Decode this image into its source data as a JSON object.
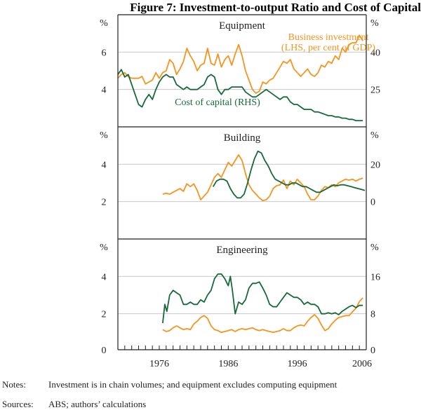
{
  "chart_data": {
    "type": "line",
    "title": "Figure 7: Investment-to-output Ratio and Cost of Capital",
    "colors": {
      "investment": "#f7941d",
      "cost_of_capital": "#17693a",
      "grid": "#c8c8c8",
      "frame": "#231f20"
    },
    "x_axis": {
      "range": [
        1970,
        2006
      ],
      "tick_labels": [
        "1976",
        "1986",
        "1996",
        "2006"
      ],
      "tick_values": [
        1976,
        1986,
        1996,
        2006
      ],
      "minor_ticks": "yearly"
    },
    "panels": [
      {
        "name": "Equipment",
        "left_unit": "%",
        "right_unit": "%",
        "left_range": [
          2,
          8
        ],
        "right_range": [
          10,
          55
        ],
        "left_ticks": [
          "4",
          "6"
        ],
        "left_tick_values": [
          4,
          6
        ],
        "right_ticks": [
          "25",
          "40"
        ],
        "right_tick_values": [
          25,
          40
        ],
        "grid": true,
        "annotations": [
          {
            "text": "Business investment",
            "series": "investment"
          },
          {
            "text": "(LHS, per cent of GDP)",
            "series": "investment"
          },
          {
            "text": "Cost of capital (RHS)",
            "series": "cost_of_capital"
          }
        ],
        "series": [
          {
            "name": "Business investment (LHS, per cent of GDP)",
            "key": "investment",
            "axis": "left",
            "x": [
              1970,
              1970.5,
              1971,
              1971.5,
              1972,
              1972.5,
              1973,
              1973.5,
              1974,
              1974.5,
              1975,
              1975.5,
              1976,
              1976.5,
              1977,
              1977.5,
              1978,
              1978.5,
              1979,
              1979.5,
              1980,
              1980.5,
              1981,
              1981.5,
              1982,
              1982.5,
              1983,
              1983.5,
              1984,
              1984.5,
              1985,
              1985.5,
              1986,
              1986.5,
              1987,
              1987.5,
              1988,
              1988.5,
              1989,
              1989.5,
              1990,
              1990.5,
              1991,
              1991.5,
              1992,
              1992.5,
              1993,
              1993.5,
              1994,
              1994.5,
              1995,
              1995.5,
              1996,
              1996.5,
              1997,
              1997.5,
              1998,
              1998.5,
              1999,
              1999.5,
              2000,
              2000.5,
              2001,
              2001.5,
              2002,
              2002.5,
              2003,
              2003.5,
              2004,
              2004.5,
              2005,
              2005.5
            ],
            "values": [
              4.6,
              4.8,
              4.9,
              4.7,
              4.6,
              4.6,
              4.6,
              4.7,
              4.3,
              4.4,
              4.5,
              4.9,
              4.6,
              4.9,
              5.0,
              5.6,
              5.4,
              4.8,
              5.1,
              5.5,
              6.2,
              5.8,
              5.5,
              5.0,
              5.3,
              5.4,
              6.2,
              5.4,
              5.3,
              5.9,
              5.2,
              5.6,
              5.8,
              5.3,
              5.9,
              6.4,
              5.8,
              5.0,
              4.5,
              4.0,
              3.8,
              3.9,
              4.4,
              4.3,
              4.5,
              4.6,
              4.9,
              5.2,
              5.5,
              5.4,
              5.6,
              5.1,
              4.9,
              4.7,
              4.9,
              5.1,
              4.8,
              4.7,
              4.9,
              5.3,
              5.2,
              5.5,
              5.4,
              5.8,
              5.6,
              6.2,
              6.0,
              6.4,
              6.5,
              6.5,
              6.9,
              6.6
            ]
          },
          {
            "name": "Cost of capital (RHS)",
            "key": "cost_of_capital",
            "axis": "right",
            "x": [
              1970,
              1970.5,
              1971,
              1971.5,
              1972,
              1972.5,
              1973,
              1973.5,
              1974,
              1974.5,
              1975,
              1975.5,
              1976,
              1976.5,
              1977,
              1977.5,
              1978,
              1978.5,
              1979,
              1979.5,
              1980,
              1980.5,
              1981,
              1981.5,
              1982,
              1982.5,
              1983,
              1983.5,
              1984,
              1984.5,
              1985,
              1985.5,
              1986,
              1986.5,
              1987,
              1987.5,
              1988,
              1988.5,
              1989,
              1989.5,
              1990,
              1990.5,
              1991,
              1991.5,
              1992,
              1992.5,
              1993,
              1993.5,
              1994,
              1994.5,
              1995,
              1995.5,
              1996,
              1996.5,
              1997,
              1997.5,
              1998,
              1998.5,
              1999,
              1999.5,
              2000,
              2000.5,
              2001,
              2001.5,
              2002,
              2002.5,
              2003,
              2003.5,
              2004,
              2004.5,
              2005,
              2005.5
            ],
            "values": [
              31,
              33,
              30,
              31,
              27,
              23,
              19,
              18,
              21,
              23,
              21,
              25,
              28,
              30,
              31,
              30,
              30,
              27,
              26,
              25,
              26,
              25,
              25,
              25,
              26,
              27,
              30,
              31,
              30,
              25,
              23,
              25,
              25,
              26,
              26,
              26,
              26,
              24,
              23,
              22,
              22,
              23,
              24,
              25,
              24,
              23,
              22,
              21,
              22,
              22,
              20,
              19,
              19,
              18,
              17,
              17,
              17,
              16,
              16,
              15.5,
              15,
              14.5,
              14.5,
              14,
              14,
              13.5,
              13.5,
              13,
              13,
              12.5,
              12.5,
              12.5
            ]
          }
        ]
      },
      {
        "name": "Building",
        "left_unit": "%",
        "right_unit": "%",
        "left_range": [
          0,
          6
        ],
        "right_range": [
          -20,
          40
        ],
        "left_ticks": [
          "2",
          "4"
        ],
        "left_tick_values": [
          2,
          4
        ],
        "right_ticks": [
          "0",
          "20"
        ],
        "right_tick_values": [
          0,
          20
        ],
        "grid": true,
        "series": [
          {
            "name": "Business investment (LHS, per cent of GDP)",
            "key": "investment",
            "axis": "left",
            "x": [
              1976.5,
              1977,
              1977.5,
              1978,
              1978.5,
              1979,
              1979.5,
              1980,
              1980.5,
              1981,
              1981.5,
              1982,
              1982.5,
              1983,
              1983.5,
              1984,
              1984.5,
              1985,
              1985.5,
              1986,
              1986.5,
              1987,
              1987.5,
              1988,
              1988.5,
              1989,
              1989.5,
              1990,
              1990.5,
              1991,
              1991.5,
              1992,
              1992.5,
              1993,
              1993.5,
              1994,
              1994.5,
              1995,
              1995.5,
              1996,
              1996.5,
              1997,
              1997.5,
              1998,
              1998.5,
              1999,
              1999.5,
              2000,
              2000.5,
              2001,
              2001.5,
              2002,
              2002.5,
              2003,
              2003.5,
              2004,
              2004.5,
              2005,
              2005.5
            ],
            "values": [
              2.4,
              2.45,
              2.4,
              2.5,
              2.6,
              2.7,
              2.55,
              2.95,
              2.8,
              2.95,
              2.6,
              2.1,
              2.3,
              2.5,
              2.9,
              3.3,
              3.5,
              3.3,
              3.7,
              4.1,
              3.9,
              4.2,
              4.5,
              4.2,
              3.5,
              2.9,
              2.6,
              2.4,
              2.2,
              2.05,
              2.1,
              2.3,
              2.7,
              2.85,
              2.9,
              3.15,
              2.7,
              3.1,
              2.9,
              3.2,
              3.0,
              2.8,
              2.4,
              2.1,
              2.1,
              2.3,
              2.6,
              2.8,
              2.75,
              2.9,
              2.8,
              3.0,
              3.1,
              3.2,
              3.15,
              3.2,
              3.1,
              3.2,
              3.25
            ]
          },
          {
            "name": "Cost of capital (RHS)",
            "key": "cost_of_capital",
            "axis": "right",
            "x": [
              1983.8,
              1984.3,
              1984.8,
              1985.3,
              1985.8,
              1986.3,
              1986.8,
              1987.3,
              1987.8,
              1988.3,
              1988.8,
              1989.3,
              1989.8,
              1990.3,
              1990.8,
              1991.3,
              1991.8,
              1992.3,
              1992.8,
              1993.3,
              1993.8,
              1994.3,
              1994.8,
              1995.3,
              1995.8,
              1996.3,
              1996.8,
              1997.3,
              1997.8,
              1998.3,
              1998.8,
              1999.3,
              1999.8,
              2000.3,
              2000.8,
              2001.3,
              2001.8,
              2002.3,
              2002.8,
              2003.3,
              2003.8,
              2004.3,
              2004.8,
              2005.3,
              2005.8
            ],
            "values": [
              8,
              11,
              12,
              12,
              11,
              7,
              4,
              2,
              2,
              4,
              10,
              17,
              23,
              27,
              26,
              22,
              19,
              15,
              12,
              11,
              10,
              9,
              9,
              10,
              10,
              9,
              8,
              8,
              7,
              6,
              5,
              5,
              6,
              7,
              8,
              9,
              8.5,
              9,
              9,
              8.5,
              8,
              7.5,
              7,
              6.5,
              6
            ]
          }
        ]
      },
      {
        "name": "Engineering",
        "left_unit": "%",
        "right_unit": "%",
        "left_range": [
          0,
          6
        ],
        "right_range": [
          0,
          24
        ],
        "left_ticks": [
          "0",
          "2",
          "4"
        ],
        "left_tick_values": [
          0,
          2,
          4
        ],
        "right_ticks": [
          "0",
          "8",
          "16"
        ],
        "right_tick_values": [
          0,
          8,
          16
        ],
        "grid": true,
        "series": [
          {
            "name": "Business investment (LHS, per cent of GDP)",
            "key": "investment",
            "axis": "left",
            "x": [
              1976.5,
              1977,
              1977.5,
              1978,
              1978.5,
              1979,
              1979.5,
              1980,
              1980.5,
              1981,
              1981.5,
              1982,
              1982.5,
              1983,
              1983.5,
              1984,
              1984.5,
              1985,
              1985.5,
              1986,
              1986.5,
              1987,
              1987.5,
              1988,
              1988.5,
              1989,
              1989.5,
              1990,
              1990.5,
              1991,
              1991.5,
              1992,
              1992.5,
              1993,
              1993.5,
              1994,
              1994.5,
              1995,
              1995.5,
              1996,
              1996.5,
              1997,
              1997.5,
              1998,
              1998.5,
              1999,
              1999.5,
              2000,
              2000.5,
              2001,
              2001.5,
              2002,
              2002.5,
              2003,
              2003.5,
              2004,
              2004.5,
              2005,
              2005.5
            ],
            "values": [
              1.15,
              1.05,
              1.1,
              1.25,
              1.35,
              1.25,
              1.15,
              1.2,
              1.15,
              1.45,
              1.6,
              1.8,
              1.9,
              1.75,
              1.35,
              1.15,
              1.1,
              1.0,
              1.05,
              1.1,
              1.15,
              1.05,
              1.15,
              1.2,
              1.15,
              1.2,
              1.25,
              1.15,
              1.1,
              1.15,
              1.1,
              1.05,
              1.0,
              1.05,
              1.1,
              1.2,
              1.1,
              1.1,
              1.25,
              1.35,
              1.4,
              1.35,
              1.6,
              1.8,
              1.95,
              1.75,
              1.4,
              1.1,
              1.2,
              1.45,
              1.65,
              1.8,
              1.85,
              1.9,
              1.9,
              2.1,
              2.3,
              2.65,
              2.85
            ]
          },
          {
            "name": "Cost of capital (RHS)",
            "key": "cost_of_capital",
            "axis": "right",
            "x": [
              1976.5,
              1976.8,
              1977.1,
              1977.5,
              1978,
              1978.5,
              1979,
              1979.5,
              1980,
              1980.5,
              1981,
              1981.5,
              1982,
              1982.5,
              1983,
              1983.5,
              1984,
              1984.5,
              1985,
              1985.5,
              1986,
              1986.3,
              1986.6,
              1987,
              1987.5,
              1988,
              1988.5,
              1989,
              1989.5,
              1990,
              1990.5,
              1991,
              1991.5,
              1992,
              1992.5,
              1993,
              1993.5,
              1994,
              1994.5,
              1995,
              1995.5,
              1996,
              1996.5,
              1997,
              1997.5,
              1998,
              1998.5,
              1999,
              1999.5,
              2000,
              2000.5,
              2001,
              2001.5,
              2002,
              2002.5,
              2003,
              2003.5,
              2004,
              2004.5,
              2005,
              2005.5
            ],
            "values": [
              6,
              10,
              8.5,
              12,
              13,
              12.5,
              12,
              10,
              10,
              10.5,
              10,
              10,
              11,
              10.5,
              12,
              13,
              15.5,
              16.5,
              16.5,
              15.5,
              14,
              16,
              13,
              8,
              10.5,
              10,
              11,
              13.5,
              14.5,
              14.5,
              14.8,
              13.5,
              12,
              10,
              9.5,
              9.5,
              10.5,
              11.5,
              12.5,
              12,
              11.5,
              11.5,
              11,
              10,
              10.5,
              10,
              10,
              9.5,
              8,
              8,
              8.2,
              8,
              8.2,
              7.8,
              8.5,
              9,
              9.5,
              9.8,
              9.3,
              9.8,
              9.8
            ]
          }
        ]
      }
    ]
  },
  "notes": {
    "label": "Notes:",
    "text": "Investment is in chain volumes; and equipment excludes computing equipment"
  },
  "sources": {
    "label": "Sources:",
    "text": "ABS; authors’ calculations"
  }
}
